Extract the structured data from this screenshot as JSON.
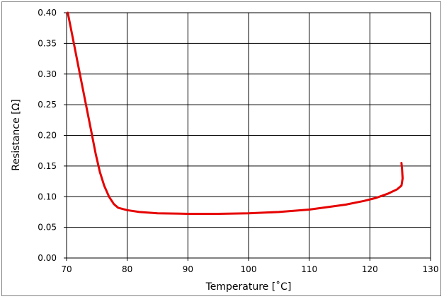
{
  "chart_data": {
    "type": "line",
    "title": "",
    "xlabel": "Temperature [˚C]",
    "ylabel": "Resistance [Ω]",
    "xlim": [
      70,
      130
    ],
    "ylim": [
      0,
      0.4
    ],
    "xticks": [
      70,
      80,
      90,
      100,
      110,
      120,
      130
    ],
    "yticks": [
      0.0,
      0.05,
      0.1,
      0.15,
      0.2,
      0.25,
      0.3,
      0.35,
      0.4
    ],
    "xtick_labels": [
      "70",
      "80",
      "90",
      "100",
      "110",
      "120",
      "130"
    ],
    "ytick_labels": [
      "0.00",
      "0.05",
      "0.10",
      "0.15",
      "0.20",
      "0.25",
      "0.30",
      "0.35",
      "0.40"
    ],
    "grid": true,
    "legend": "none",
    "series": [
      {
        "color": "#e60000",
        "x": [
          70.2,
          71.0,
          72.0,
          73.0,
          74.0,
          74.8,
          75.5,
          76.2,
          77.0,
          77.8,
          78.5,
          80.0,
          82.0,
          85.0,
          90.0,
          95.0,
          100.0,
          105.0,
          110.0,
          113.0,
          116.0,
          119.0,
          121.0,
          123.0,
          124.5,
          125.2,
          125.4,
          125.3,
          125.2
        ],
        "y": [
          0.4,
          0.36,
          0.31,
          0.26,
          0.21,
          0.17,
          0.14,
          0.118,
          0.1,
          0.088,
          0.082,
          0.078,
          0.075,
          0.073,
          0.072,
          0.072,
          0.073,
          0.075,
          0.079,
          0.083,
          0.087,
          0.093,
          0.098,
          0.105,
          0.112,
          0.118,
          0.13,
          0.145,
          0.155
        ]
      }
    ]
  }
}
